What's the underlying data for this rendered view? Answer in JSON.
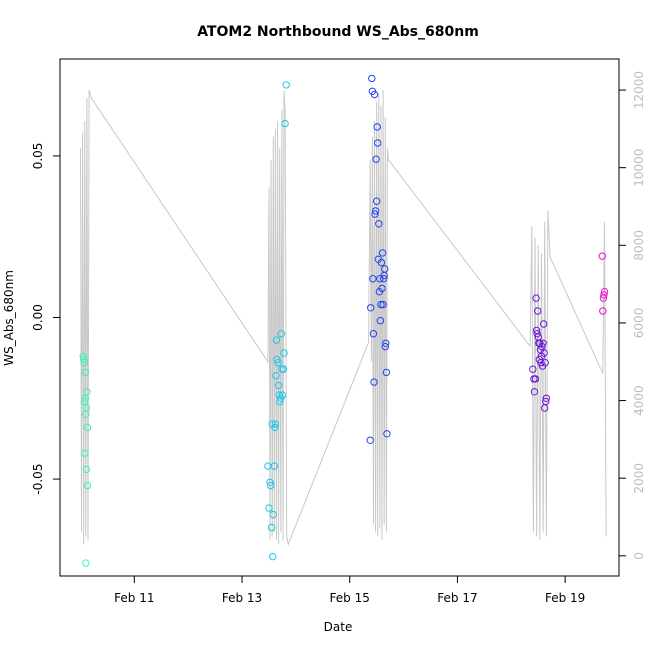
{
  "chart_data": {
    "type": "scatter",
    "title": "ATOM2 Northbound WS_Abs_680nm",
    "xlabel": "Date",
    "ylabel": "WS_Abs_680nm",
    "xlim": [
      9.62,
      20.0
    ],
    "ylim": [
      -0.08,
      0.08
    ],
    "y2lim": [
      -520,
      12800
    ],
    "x_ticks": [
      {
        "value": 11,
        "label": "Feb 11"
      },
      {
        "value": 13,
        "label": "Feb 13"
      },
      {
        "value": 15,
        "label": "Feb 15"
      },
      {
        "value": 17,
        "label": "Feb 17"
      },
      {
        "value": 19,
        "label": "Feb 19"
      }
    ],
    "y_ticks": [
      {
        "value": -0.05,
        "label": "-0.05"
      },
      {
        "value": 0.0,
        "label": "0.00"
      },
      {
        "value": 0.05,
        "label": "0.05"
      }
    ],
    "y2_ticks": [
      {
        "value": 0,
        "label": "0"
      },
      {
        "value": 2000,
        "label": "2000"
      },
      {
        "value": 4000,
        "label": "4000"
      },
      {
        "value": 6000,
        "label": "6000"
      },
      {
        "value": 8000,
        "label": "8000"
      },
      {
        "value": 10000,
        "label": "10000"
      },
      {
        "value": 12000,
        "label": "12000"
      }
    ],
    "series": [
      {
        "name": "group 1",
        "color": "#3CF2B4",
        "x": [
          10.05,
          10.06,
          10.07,
          10.08,
          10.08,
          10.09,
          10.09,
          10.1,
          10.1,
          10.11,
          10.11,
          10.12,
          10.13,
          10.13
        ],
        "y": [
          -0.012,
          -0.013,
          -0.014,
          -0.026,
          -0.042,
          -0.017,
          -0.025,
          -0.03,
          -0.076,
          -0.028,
          -0.047,
          -0.023,
          -0.034,
          -0.052
        ]
      },
      {
        "name": "group 2",
        "color": "#1AC8E8",
        "x": [
          13.48,
          13.5,
          13.52,
          13.53,
          13.55,
          13.56,
          13.57,
          13.58,
          13.6,
          13.61,
          13.62,
          13.63,
          13.64,
          13.65,
          13.67,
          13.68,
          13.69,
          13.7,
          13.72,
          13.73,
          13.74,
          13.75,
          13.77,
          13.78,
          13.8,
          13.82
        ],
        "y": [
          -0.046,
          -0.059,
          -0.051,
          -0.052,
          -0.065,
          -0.033,
          -0.074,
          -0.061,
          -0.046,
          -0.034,
          -0.033,
          -0.018,
          -0.007,
          -0.013,
          -0.014,
          -0.021,
          -0.024,
          -0.026,
          -0.025,
          -0.005,
          -0.016,
          -0.024,
          -0.016,
          -0.011,
          0.06,
          0.072
        ]
      },
      {
        "name": "group 3",
        "color": "#2346EC",
        "x": [
          15.38,
          15.39,
          15.41,
          15.42,
          15.43,
          15.44,
          15.45,
          15.46,
          15.47,
          15.48,
          15.49,
          15.5,
          15.51,
          15.52,
          15.53,
          15.54,
          15.55,
          15.56,
          15.57,
          15.58,
          15.59,
          15.6,
          15.61,
          15.62,
          15.63,
          15.64,
          15.65,
          15.66,
          15.67,
          15.68,
          15.69
        ],
        "y": [
          -0.038,
          0.003,
          0.074,
          0.07,
          0.012,
          -0.005,
          -0.02,
          0.069,
          0.032,
          0.033,
          0.049,
          0.036,
          0.059,
          0.054,
          0.018,
          0.029,
          0.008,
          0.012,
          -0.001,
          0.004,
          0.017,
          0.009,
          0.02,
          0.004,
          0.012,
          0.013,
          0.015,
          -0.009,
          -0.008,
          -0.017,
          -0.036
        ]
      },
      {
        "name": "group 4",
        "color": "#6E19D6",
        "x": [
          18.4,
          18.42,
          18.43,
          18.45,
          18.46,
          18.47,
          18.48,
          18.49,
          18.5,
          18.51,
          18.52,
          18.53,
          18.54,
          18.55,
          18.56,
          18.57,
          18.58,
          18.59,
          18.6,
          18.61,
          18.62,
          18.63,
          18.64,
          18.65
        ],
        "y": [
          -0.016,
          -0.019,
          -0.023,
          -0.019,
          0.006,
          -0.004,
          -0.005,
          0.002,
          -0.006,
          -0.008,
          -0.013,
          -0.008,
          -0.01,
          -0.014,
          -0.012,
          -0.009,
          -0.015,
          -0.008,
          -0.002,
          -0.011,
          -0.028,
          -0.014,
          -0.026,
          -0.025
        ]
      },
      {
        "name": "group 5",
        "color": "#E614D2",
        "x": [
          19.69,
          19.7,
          19.71,
          19.72,
          19.73
        ],
        "y": [
          0.019,
          0.002,
          0.006,
          0.007,
          0.008
        ]
      }
    ],
    "line_series": {
      "name": "secondary axis trace",
      "color": "#c8c8c8",
      "axis": "right",
      "x": [
        10.0,
        10.02,
        10.04,
        10.06,
        10.08,
        10.1,
        10.12,
        10.14,
        10.16,
        10.18,
        10.2,
        13.48,
        13.5,
        13.52,
        13.54,
        13.56,
        13.58,
        13.6,
        13.62,
        13.64,
        13.66,
        13.68,
        13.7,
        13.72,
        13.74,
        13.76,
        13.78,
        13.8,
        13.83,
        13.86,
        15.35,
        15.38,
        15.4,
        15.42,
        15.44,
        15.46,
        15.48,
        15.5,
        15.52,
        15.54,
        15.56,
        15.58,
        15.6,
        15.62,
        15.64,
        15.66,
        15.68,
        15.7,
        15.72,
        18.35,
        18.38,
        18.41,
        18.44,
        18.47,
        18.5,
        18.53,
        18.56,
        18.59,
        18.62,
        18.65,
        18.68,
        18.72,
        19.7,
        19.73,
        19.76
      ],
      "y": [
        10500,
        600,
        10900,
        300,
        11200,
        500,
        11800,
        400,
        12000,
        11900,
        11800,
        5000,
        9500,
        400,
        10200,
        500,
        10800,
        600,
        11000,
        400,
        11200,
        300,
        10500,
        600,
        11500,
        400,
        12000,
        11500,
        500,
        300,
        5500,
        10200,
        5000,
        10800,
        800,
        11200,
        600,
        11700,
        500,
        11900,
        700,
        11600,
        400,
        12000,
        800,
        11300,
        600,
        10500,
        10200,
        5400,
        8500,
        600,
        8200,
        500,
        8000,
        400,
        7800,
        600,
        8600,
        500,
        8900,
        7700,
        4700,
        8600,
        500
      ]
    }
  }
}
